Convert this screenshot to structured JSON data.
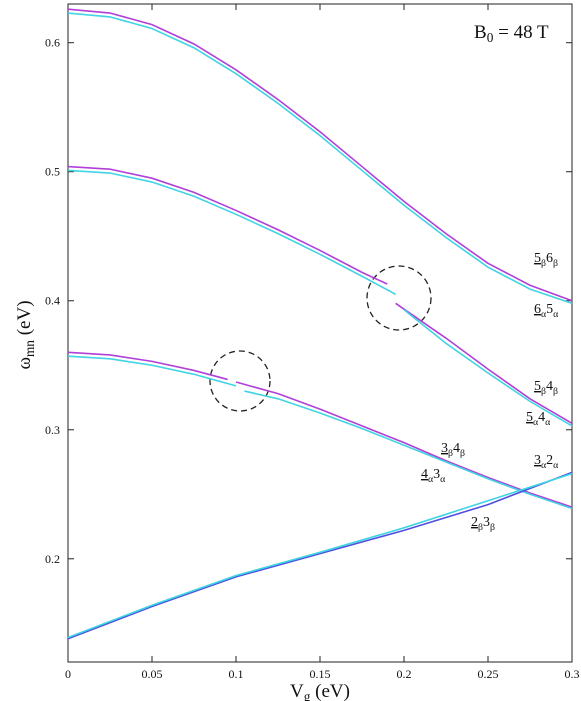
{
  "chart_data": {
    "type": "line",
    "title": "B0 = 48 T",
    "xlabel": "Vg (eV)",
    "ylabel": "ωmn (eV)",
    "xlim": [
      0,
      0.3
    ],
    "ylim": [
      0.12,
      0.63
    ],
    "xticks": [
      0,
      0.05,
      0.1,
      0.15,
      0.2,
      0.25,
      0.3
    ],
    "yticks": [
      0.2,
      0.3,
      0.4,
      0.5,
      0.6
    ],
    "series": [
      {
        "color": "#b040d8",
        "x": [
          0,
          0.025,
          0.05,
          0.075,
          0.1,
          0.125,
          0.15,
          0.175,
          0.2,
          0.225,
          0.25,
          0.275,
          0.3
        ],
        "values": [
          0.626,
          0.623,
          0.614,
          0.599,
          0.579,
          0.556,
          0.531,
          0.504,
          0.477,
          0.452,
          0.429,
          0.412,
          0.4
        ]
      },
      {
        "color": "#40d4e4",
        "x": [
          0,
          0.025,
          0.05,
          0.075,
          0.1,
          0.125,
          0.15,
          0.175,
          0.2,
          0.225,
          0.25,
          0.275,
          0.3
        ],
        "values": [
          0.623,
          0.62,
          0.611,
          0.596,
          0.576,
          0.553,
          0.528,
          0.501,
          0.474,
          0.449,
          0.426,
          0.409,
          0.398
        ]
      },
      {
        "color": "#b040d8",
        "x": [
          0,
          0.025,
          0.05,
          0.075,
          0.1,
          0.125,
          0.15,
          0.175,
          0.19,
          0.1925,
          0.195,
          0.225,
          0.25,
          0.275,
          0.3
        ],
        "values": [
          0.504,
          0.502,
          0.495,
          0.484,
          0.47,
          0.455,
          0.439,
          0.422,
          0.413,
          null,
          0.398,
          0.371,
          0.347,
          0.324,
          0.305
        ]
      },
      {
        "color": "#40d4e4",
        "x": [
          0,
          0.025,
          0.05,
          0.075,
          0.1,
          0.125,
          0.15,
          0.175,
          0.195,
          0.1975,
          0.2,
          0.225,
          0.25,
          0.275,
          0.3
        ],
        "values": [
          0.501,
          0.499,
          0.492,
          0.481,
          0.467,
          0.452,
          0.436,
          0.419,
          0.405,
          null,
          0.393,
          0.367,
          0.344,
          0.322,
          0.303
        ]
      },
      {
        "color": "#b040d8",
        "x": [
          0,
          0.025,
          0.05,
          0.075,
          0.095,
          0.0975,
          0.1,
          0.125,
          0.15,
          0.175,
          0.2,
          0.225,
          0.25,
          0.275,
          0.3
        ],
        "values": [
          0.36,
          0.358,
          0.353,
          0.346,
          0.339,
          null,
          0.337,
          0.328,
          0.316,
          0.303,
          0.29,
          0.276,
          0.263,
          0.251,
          0.24
        ]
      },
      {
        "color": "#40d4e4",
        "x": [
          0,
          0.025,
          0.05,
          0.075,
          0.1,
          0.1025,
          0.105,
          0.125,
          0.15,
          0.175,
          0.2,
          0.225,
          0.25,
          0.275,
          0.3
        ],
        "values": [
          0.357,
          0.355,
          0.35,
          0.343,
          0.334,
          null,
          0.33,
          0.324,
          0.313,
          0.301,
          0.288,
          0.275,
          0.262,
          0.25,
          0.239
        ]
      },
      {
        "color": "#5050e0",
        "x": [
          0,
          0.05,
          0.1,
          0.15,
          0.2,
          0.25,
          0.3
        ],
        "values": [
          0.138,
          0.163,
          0.186,
          0.204,
          0.222,
          0.242,
          0.267
        ]
      },
      {
        "color": "#40d4e4",
        "x": [
          0,
          0.05,
          0.1,
          0.15,
          0.2,
          0.25,
          0.3
        ],
        "values": [
          0.139,
          0.164,
          0.187,
          0.205,
          0.224,
          0.245,
          0.266
        ]
      }
    ],
    "annotations": [
      "5β6β",
      "6α5α",
      "5β4β",
      "5α4α",
      "3β4β",
      "4α3α",
      "3α2α",
      "2β3β"
    ]
  }
}
